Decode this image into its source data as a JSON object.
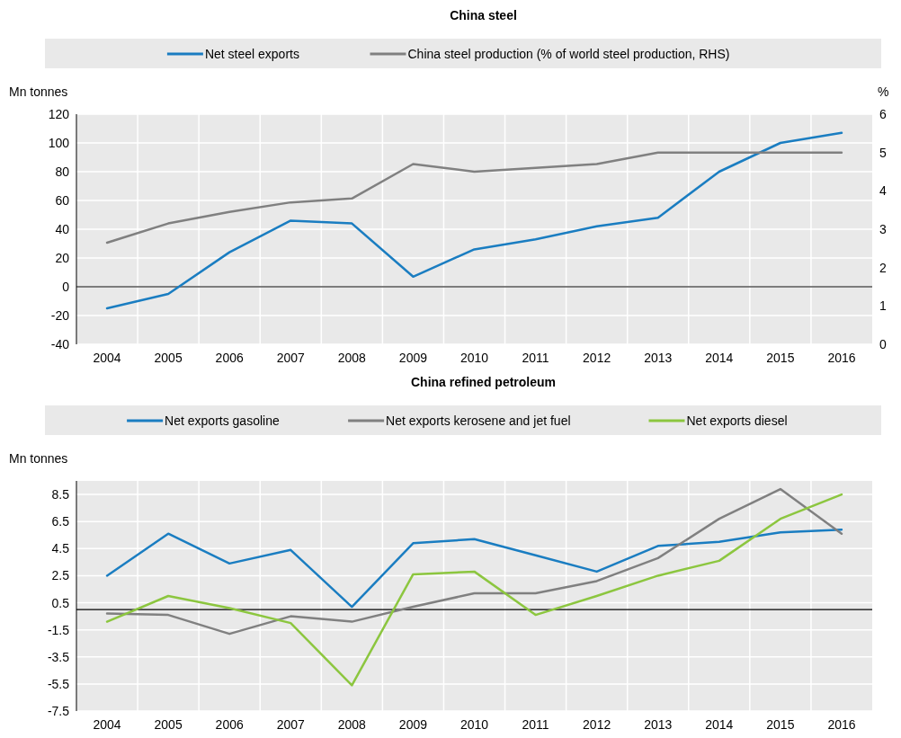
{
  "chart_data": [
    {
      "type": "line",
      "title": "China steel",
      "ylabel": "Mn tonnes",
      "y2label": "%",
      "categories": [
        "2004",
        "2005",
        "2006",
        "2007",
        "2008",
        "2009",
        "2010",
        "2011",
        "2012",
        "2013",
        "2014",
        "2015",
        "2016"
      ],
      "series": [
        {
          "name": "Net steel exports",
          "color": "#1a7dc1",
          "values": [
            -15,
            -5,
            24,
            46,
            44,
            7,
            26,
            33,
            42,
            48,
            80,
            100,
            107
          ]
        },
        {
          "name": "China steel production (% of world steel production, RHS)",
          "color": "#808080",
          "axis": "y2",
          "values": [
            2.65,
            3.15,
            3.45,
            3.7,
            3.8,
            4.7,
            4.5,
            4.6,
            4.7,
            5.0,
            5.0,
            5.0,
            5.0
          ]
        }
      ],
      "ylim": [
        -40,
        120
      ],
      "yticks": [
        -40,
        -20,
        0,
        20,
        40,
        60,
        80,
        100,
        120
      ],
      "y2lim": [
        0,
        6
      ],
      "y2ticks": [
        0,
        1,
        2,
        3,
        4,
        5,
        6
      ],
      "grid": true,
      "legend": "top"
    },
    {
      "type": "line",
      "title": "China refined petroleum",
      "ylabel": "Mn tonnes",
      "categories": [
        "2004",
        "2005",
        "2006",
        "2007",
        "2008",
        "2009",
        "2010",
        "2011",
        "2012",
        "2013",
        "2014",
        "2015",
        "2016"
      ],
      "series": [
        {
          "name": "Net exports gasoline",
          "color": "#1a7dc1",
          "values": [
            2.5,
            5.6,
            3.4,
            4.4,
            0.2,
            4.9,
            5.2,
            4.0,
            2.8,
            4.7,
            5.0,
            5.7,
            5.9
          ]
        },
        {
          "name": "Net exports kerosene and jet fuel",
          "color": "#808080",
          "values": [
            -0.3,
            -0.4,
            -1.8,
            -0.5,
            -0.9,
            0.2,
            1.2,
            1.2,
            2.1,
            3.8,
            6.7,
            8.9,
            5.6
          ]
        },
        {
          "name": "Net exports diesel",
          "color": "#8cc63f",
          "values": [
            -0.9,
            1.0,
            0.1,
            -1.0,
            -5.6,
            2.6,
            2.8,
            -0.4,
            1.0,
            2.5,
            3.6,
            6.7,
            8.5
          ]
        }
      ],
      "ylim": [
        -7.5,
        9.5
      ],
      "yticks": [
        -7.5,
        -5.5,
        -3.5,
        -1.5,
        0.5,
        2.5,
        4.5,
        6.5,
        8.5
      ],
      "grid": true,
      "legend": "top"
    }
  ]
}
